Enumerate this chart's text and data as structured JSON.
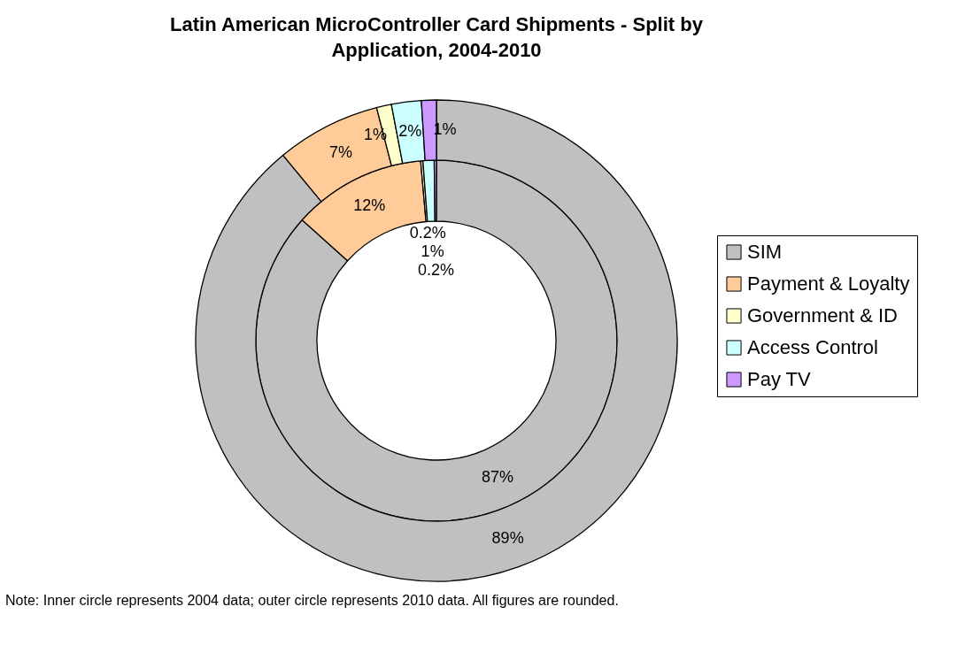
{
  "chart_data": {
    "type": "donut",
    "title": "Latin American MicroController Card Shipments - Split by Application, 2004-2010",
    "categories": [
      "SIM",
      "Payment & Loyalty",
      "Government & ID",
      "Access Control",
      "Pay TV"
    ],
    "colors": [
      "#c0c0c0",
      "#ffcc99",
      "#ffffcc",
      "#ccffff",
      "#cc99ff"
    ],
    "series": [
      {
        "values": [
          87,
          12,
          0.2,
          1,
          0.2
        ],
        "value_labels": [
          "87%",
          "12%",
          "0.2%",
          "1%",
          "0.2%"
        ]
      },
      {
        "values": [
          89,
          7,
          1,
          2,
          1
        ],
        "value_labels": [
          "89%",
          "7%",
          "1%",
          "2%",
          "1%"
        ]
      }
    ],
    "legend": "right",
    "annotations": [
      "Note: Inner circle represents 2004 data; outer circle represents 2010 data. All figures are rounded."
    ]
  }
}
